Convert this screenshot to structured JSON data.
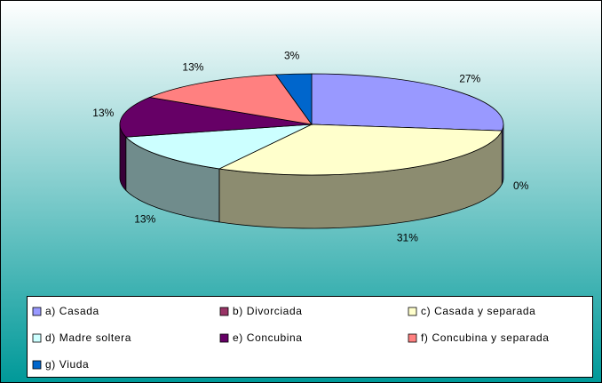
{
  "chart_data": {
    "type": "pie3d",
    "categories": [
      "a) Casada",
      "b) Divorciada",
      "c) Casada y separada",
      "d) Madre soltera",
      "e) Concubina",
      "f) Concubina y separada",
      "g) Viuda"
    ],
    "values": [
      27,
      0,
      31,
      13,
      13,
      13,
      3
    ],
    "value_labels": [
      "27%",
      "0%",
      "31%",
      "13%",
      "13%",
      "13%",
      "3%"
    ],
    "colors": [
      "#9999ff",
      "#993366",
      "#ffffcc",
      "#ccffff",
      "#660066",
      "#ff8080",
      "#0066cc"
    ],
    "legend": "bottom"
  }
}
